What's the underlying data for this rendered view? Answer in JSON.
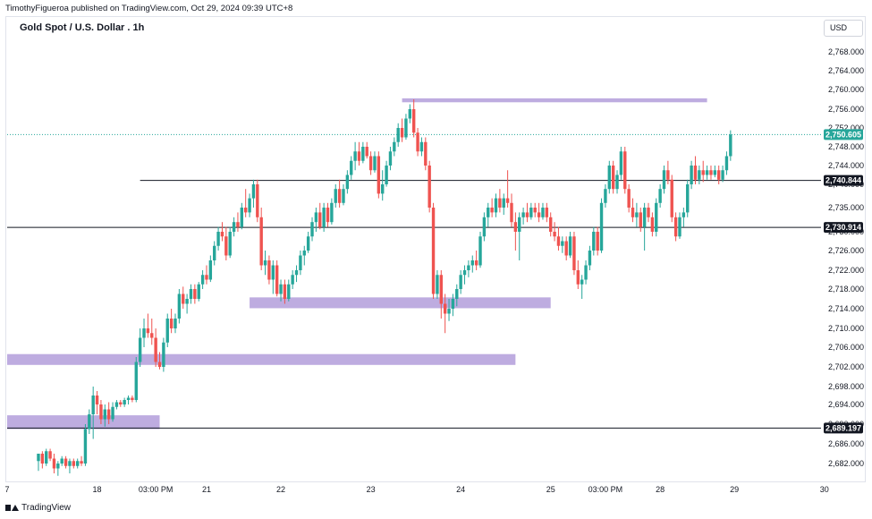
{
  "header": {
    "published_line": "TimothyFigueroa published on TradingView.com, Oct 29, 2024 09:39 UTC+8",
    "currency": "USD"
  },
  "footer": {
    "brand": "TradingView"
  },
  "colors": {
    "up": "#26a69a",
    "down": "#ef5350",
    "zone": "#b39ddb",
    "last": "#26a69a"
  },
  "chart_data": {
    "type": "candlestick",
    "title": "Gold Spot / U.S. Dollar . 1h",
    "y_ticks": [
      2682,
      2686,
      2690,
      2694,
      2698,
      2702,
      2706,
      2710,
      2714,
      2718,
      2722,
      2726,
      2730,
      2735,
      2740,
      2744,
      2748,
      2752,
      2756,
      2760,
      2764,
      2768
    ],
    "y_tick_labels": [
      "2,682.000",
      "2,686.000",
      "2,690.000",
      "2,694.000",
      "2,698.000",
      "2,702.000",
      "2,706.000",
      "2,710.000",
      "2,714.000",
      "2,718.000",
      "2,722.000",
      "2,726.000",
      "2,730.000",
      "2,735.000",
      "2,740.000",
      "2,744.000",
      "2,748.000",
      "2,752.000",
      "2,756.000",
      "2,760.000",
      "2,764.000",
      "2,768.000"
    ],
    "x_ticks": [
      {
        "label": "7",
        "t": 0
      },
      {
        "label": "18",
        "t": 23
      },
      {
        "label": "03:00 PM",
        "t": 38
      },
      {
        "label": "21",
        "t": 51
      },
      {
        "label": "22",
        "t": 70
      },
      {
        "label": "23",
        "t": 93
      },
      {
        "label": "24",
        "t": 116
      },
      {
        "label": "25",
        "t": 139
      },
      {
        "label": "03:00 PM",
        "t": 153
      },
      {
        "label": "28",
        "t": 167
      },
      {
        "label": "29",
        "t": 186
      },
      {
        "label": "30",
        "t": 209
      }
    ],
    "price_labels": [
      {
        "text": "2,750.605",
        "value": 2750.605,
        "kind": "last"
      },
      {
        "text": "2,740.844",
        "value": 2740.844,
        "kind": "level"
      },
      {
        "text": "2,730.914",
        "value": 2730.914,
        "kind": "level"
      },
      {
        "text": "2,689.197",
        "value": 2689.197,
        "kind": "level"
      }
    ],
    "horizontal_lines": [
      {
        "value": 2740.844,
        "t_start": 34,
        "t_end": 209
      },
      {
        "value": 2730.914,
        "t_start": 0,
        "t_end": 209
      },
      {
        "value": 2689.197,
        "t_start": 0,
        "t_end": 209
      }
    ],
    "zones": [
      {
        "t_start": 101,
        "t_end": 179,
        "high": 2758.2,
        "low": 2757.4
      },
      {
        "t_start": 62,
        "t_end": 139,
        "high": 2716.3,
        "low": 2714.1
      },
      {
        "t_start": 0,
        "t_end": 130,
        "high": 2704.6,
        "low": 2702.4
      },
      {
        "t_start": 0,
        "t_end": 39,
        "high": 2691.8,
        "low": 2689.0
      }
    ],
    "candles": [
      [
        8,
        2682.5,
        2684,
        2680.5,
        2684
      ],
      [
        9,
        2684,
        2684.5,
        2681,
        2682
      ],
      [
        10,
        2682,
        2685,
        2681.5,
        2684.5
      ],
      [
        11,
        2684.5,
        2685,
        2682.5,
        2683
      ],
      [
        12,
        2683,
        2684,
        2680,
        2681
      ],
      [
        13,
        2681,
        2682.5,
        2679.5,
        2682
      ],
      [
        14,
        2682,
        2683.5,
        2681.5,
        2683
      ],
      [
        15,
        2683,
        2683.5,
        2681,
        2681.5
      ],
      [
        16,
        2681.5,
        2683,
        2680,
        2682.5
      ],
      [
        17,
        2682.5,
        2683,
        2681,
        2681.5
      ],
      [
        18,
        2681.5,
        2683,
        2681,
        2682.5
      ],
      [
        19,
        2682.5,
        2683.5,
        2681.5,
        2682
      ],
      [
        20,
        2682,
        2690,
        2681.5,
        2689
      ],
      [
        21,
        2689,
        2693,
        2688,
        2692
      ],
      [
        22,
        2692,
        2698,
        2687,
        2696
      ],
      [
        23,
        2696,
        2697,
        2692,
        2694
      ],
      [
        24,
        2694,
        2695,
        2690,
        2691
      ],
      [
        25,
        2691,
        2694,
        2689.5,
        2693
      ],
      [
        26,
        2693,
        2694.5,
        2690,
        2691
      ],
      [
        27,
        2691,
        2694.5,
        2690.5,
        2693.5
      ],
      [
        28,
        2693.5,
        2695,
        2693,
        2694.5
      ],
      [
        29,
        2694.5,
        2695,
        2693.5,
        2694
      ],
      [
        30,
        2694,
        2695.5,
        2693.5,
        2695
      ],
      [
        31,
        2695,
        2696,
        2694,
        2695.5
      ],
      [
        32,
        2695.5,
        2696,
        2694.5,
        2695
      ],
      [
        33,
        2695,
        2704,
        2694.5,
        2703
      ],
      [
        34,
        2703,
        2710,
        2702,
        2708
      ],
      [
        35,
        2708,
        2712,
        2706,
        2710
      ],
      [
        36,
        2710,
        2713,
        2708,
        2709
      ],
      [
        37,
        2709,
        2712,
        2706.5,
        2708
      ],
      [
        38,
        2708,
        2710,
        2702,
        2703
      ],
      [
        39,
        2703,
        2705,
        2701.5,
        2702
      ],
      [
        40,
        2702,
        2708,
        2701,
        2707
      ],
      [
        41,
        2707,
        2713,
        2706,
        2712
      ],
      [
        42,
        2712,
        2714,
        2709,
        2710
      ],
      [
        43,
        2710,
        2713,
        2709,
        2712
      ],
      [
        44,
        2712,
        2718,
        2711,
        2717
      ],
      [
        45,
        2717,
        2718.5,
        2714,
        2715
      ],
      [
        46,
        2715,
        2717,
        2713,
        2716
      ],
      [
        47,
        2716,
        2719,
        2715,
        2718
      ],
      [
        48,
        2718,
        2719,
        2715,
        2716
      ],
      [
        49,
        2716,
        2719.5,
        2715.5,
        2719
      ],
      [
        50,
        2719,
        2722,
        2718,
        2721
      ],
      [
        51,
        2721,
        2723,
        2719,
        2720
      ],
      [
        52,
        2720,
        2725,
        2719.5,
        2724
      ],
      [
        53,
        2724,
        2728,
        2723,
        2727
      ],
      [
        54,
        2727,
        2731,
        2726,
        2730
      ],
      [
        55,
        2730,
        2732,
        2728,
        2729
      ],
      [
        56,
        2729,
        2731,
        2724,
        2725
      ],
      [
        57,
        2725,
        2731,
        2724.5,
        2730
      ],
      [
        58,
        2730,
        2733,
        2729,
        2732
      ],
      [
        59,
        2732,
        2734,
        2730,
        2731
      ],
      [
        60,
        2731,
        2736,
        2730.5,
        2735
      ],
      [
        61,
        2735,
        2739,
        2733,
        2734
      ],
      [
        62,
        2734,
        2738,
        2733,
        2737
      ],
      [
        63,
        2737,
        2741,
        2735,
        2740
      ],
      [
        64,
        2740,
        2741,
        2732,
        2733
      ],
      [
        65,
        2733,
        2735,
        2722,
        2723
      ],
      [
        66,
        2723,
        2726,
        2721,
        2724
      ],
      [
        67,
        2724,
        2725,
        2719,
        2720
      ],
      [
        68,
        2720,
        2724,
        2717,
        2723
      ],
      [
        69,
        2723,
        2724,
        2716.5,
        2717
      ],
      [
        70,
        2717,
        2720,
        2715.5,
        2719
      ],
      [
        71,
        2719,
        2720,
        2715,
        2716
      ],
      [
        72,
        2716,
        2720,
        2715.5,
        2719
      ],
      [
        73,
        2719,
        2722,
        2718,
        2721
      ],
      [
        74,
        2721,
        2723,
        2719.5,
        2722
      ],
      [
        75,
        2722,
        2726,
        2721,
        2725
      ],
      [
        76,
        2725,
        2727,
        2723,
        2726
      ],
      [
        77,
        2726,
        2730,
        2725.5,
        2729
      ],
      [
        78,
        2729,
        2733,
        2728,
        2732
      ],
      [
        79,
        2732,
        2735,
        2730,
        2734
      ],
      [
        80,
        2734,
        2736,
        2730.5,
        2731
      ],
      [
        81,
        2731,
        2736,
        2730,
        2735
      ],
      [
        82,
        2735,
        2736,
        2731,
        2732
      ],
      [
        83,
        2732,
        2737,
        2731.5,
        2736
      ],
      [
        84,
        2736,
        2740,
        2735,
        2739
      ],
      [
        85,
        2739,
        2741,
        2735,
        2736
      ],
      [
        86,
        2736,
        2740,
        2735.5,
        2739
      ],
      [
        87,
        2739,
        2743,
        2738,
        2742
      ],
      [
        88,
        2742,
        2746,
        2741,
        2745
      ],
      [
        89,
        2745,
        2749,
        2743,
        2747
      ],
      [
        90,
        2747,
        2749,
        2744,
        2745
      ],
      [
        91,
        2745,
        2749,
        2744.5,
        2748
      ],
      [
        92,
        2748,
        2749,
        2745.5,
        2746
      ],
      [
        93,
        2746,
        2747,
        2742,
        2743
      ],
      [
        94,
        2743,
        2747,
        2742.5,
        2746
      ],
      [
        95,
        2746,
        2747,
        2737,
        2738
      ],
      [
        96,
        2738,
        2743,
        2736.5,
        2740
      ],
      [
        97,
        2740,
        2745,
        2739.5,
        2744
      ],
      [
        98,
        2744,
        2748,
        2743,
        2747
      ],
      [
        99,
        2747,
        2750,
        2746,
        2749
      ],
      [
        100,
        2749,
        2753,
        2748,
        2752
      ],
      [
        101,
        2752,
        2754,
        2749,
        2750
      ],
      [
        102,
        2750,
        2755,
        2749.5,
        2754
      ],
      [
        103,
        2754,
        2757,
        2753,
        2756
      ],
      [
        104,
        2756,
        2758,
        2750,
        2751
      ],
      [
        105,
        2751,
        2752,
        2746,
        2747
      ],
      [
        106,
        2747,
        2750,
        2746,
        2749
      ],
      [
        107,
        2749,
        2750,
        2743,
        2744
      ],
      [
        108,
        2744,
        2745,
        2734,
        2735
      ],
      [
        109,
        2735,
        2736,
        2716,
        2717
      ],
      [
        110,
        2717,
        2722,
        2716,
        2721
      ],
      [
        111,
        2721,
        2722,
        2712,
        2715
      ],
      [
        112,
        2715,
        2717,
        2709,
        2713
      ],
      [
        113,
        2713,
        2716,
        2711.5,
        2714
      ],
      [
        114,
        2714,
        2717,
        2712.5,
        2716
      ],
      [
        115,
        2716,
        2719,
        2714.5,
        2718
      ],
      [
        116,
        2718,
        2722,
        2717,
        2721
      ],
      [
        117,
        2721,
        2723,
        2719,
        2722
      ],
      [
        118,
        2722,
        2724,
        2720.5,
        2723
      ],
      [
        119,
        2723,
        2725,
        2721.5,
        2724
      ],
      [
        120,
        2724,
        2726,
        2722,
        2723
      ],
      [
        121,
        2723,
        2730,
        2722.5,
        2729
      ],
      [
        122,
        2729,
        2734,
        2728,
        2733
      ],
      [
        123,
        2733,
        2736,
        2731,
        2735
      ],
      [
        124,
        2735,
        2737,
        2733,
        2734
      ],
      [
        125,
        2734,
        2738,
        2733,
        2737
      ],
      [
        126,
        2737,
        2739,
        2734,
        2735
      ],
      [
        127,
        2735,
        2738,
        2733.5,
        2737
      ],
      [
        128,
        2737,
        2743,
        2735,
        2736
      ],
      [
        129,
        2736,
        2738,
        2731,
        2732
      ],
      [
        130,
        2732,
        2734,
        2726,
        2730
      ],
      [
        131,
        2730,
        2734,
        2724,
        2733
      ],
      [
        132,
        2733,
        2735,
        2731.5,
        2734
      ],
      [
        133,
        2734,
        2736,
        2732,
        2733
      ],
      [
        134,
        2733,
        2736,
        2732.5,
        2735
      ],
      [
        135,
        2735,
        2736,
        2733,
        2734
      ],
      [
        136,
        2734,
        2736,
        2732,
        2733
      ],
      [
        137,
        2733,
        2736,
        2732.5,
        2735
      ],
      [
        138,
        2735,
        2736,
        2732,
        2733
      ],
      [
        139,
        2733,
        2734,
        2729,
        2730
      ],
      [
        140,
        2730,
        2732,
        2728,
        2729
      ],
      [
        141,
        2729,
        2731,
        2726,
        2727
      ],
      [
        142,
        2727,
        2729,
        2725.5,
        2728
      ],
      [
        143,
        2728,
        2729,
        2724,
        2725
      ],
      [
        144,
        2725,
        2730,
        2724.5,
        2729
      ],
      [
        145,
        2729,
        2730,
        2721,
        2722
      ],
      [
        146,
        2722,
        2724,
        2718,
        2719
      ],
      [
        147,
        2719,
        2721,
        2716,
        2720
      ],
      [
        148,
        2720,
        2724,
        2719,
        2723
      ],
      [
        149,
        2723,
        2727,
        2722,
        2726
      ],
      [
        150,
        2726,
        2731,
        2725,
        2730
      ],
      [
        151,
        2730,
        2731,
        2725,
        2726
      ],
      [
        152,
        2726,
        2737,
        2725.5,
        2736
      ],
      [
        153,
        2736,
        2740,
        2735,
        2739
      ],
      [
        154,
        2739,
        2745,
        2738,
        2744
      ],
      [
        155,
        2744,
        2745,
        2738,
        2739
      ],
      [
        156,
        2739,
        2743,
        2738,
        2742
      ],
      [
        157,
        2742,
        2748,
        2741,
        2747
      ],
      [
        158,
        2747,
        2748,
        2738,
        2739
      ],
      [
        159,
        2739,
        2740,
        2734,
        2735
      ],
      [
        160,
        2735,
        2737,
        2732,
        2733
      ],
      [
        161,
        2733,
        2736,
        2731,
        2734
      ],
      [
        162,
        2734,
        2735,
        2730,
        2731
      ],
      [
        163,
        2731,
        2736,
        2726,
        2735
      ],
      [
        164,
        2735,
        2736,
        2732,
        2733
      ],
      [
        165,
        2733,
        2734,
        2729,
        2730
      ],
      [
        166,
        2730,
        2737,
        2729,
        2736
      ],
      [
        167,
        2736,
        2740,
        2735,
        2739
      ],
      [
        168,
        2739,
        2744,
        2738,
        2743
      ],
      [
        169,
        2743,
        2745,
        2740,
        2741
      ],
      [
        170,
        2741,
        2742,
        2732,
        2733
      ],
      [
        171,
        2733,
        2734,
        2728,
        2729
      ],
      [
        172,
        2729,
        2734,
        2728.5,
        2733
      ],
      [
        173,
        2733,
        2735,
        2731,
        2734
      ],
      [
        174,
        2734,
        2741,
        2733,
        2740
      ],
      [
        175,
        2740,
        2745,
        2739,
        2744
      ],
      [
        176,
        2744,
        2746,
        2740,
        2741
      ],
      [
        177,
        2741,
        2744,
        2740,
        2743
      ],
      [
        178,
        2743,
        2745,
        2740.5,
        2742
      ],
      [
        179,
        2742,
        2744,
        2741,
        2743
      ],
      [
        180,
        2743,
        2744,
        2741,
        2742
      ],
      [
        181,
        2742,
        2744,
        2741.5,
        2743
      ],
      [
        182,
        2743,
        2744,
        2740,
        2741
      ],
      [
        183,
        2741,
        2744,
        2740.5,
        2743
      ],
      [
        184,
        2743,
        2747,
        2742,
        2746
      ],
      [
        185,
        2746,
        2751.5,
        2745,
        2750.6
      ]
    ]
  }
}
